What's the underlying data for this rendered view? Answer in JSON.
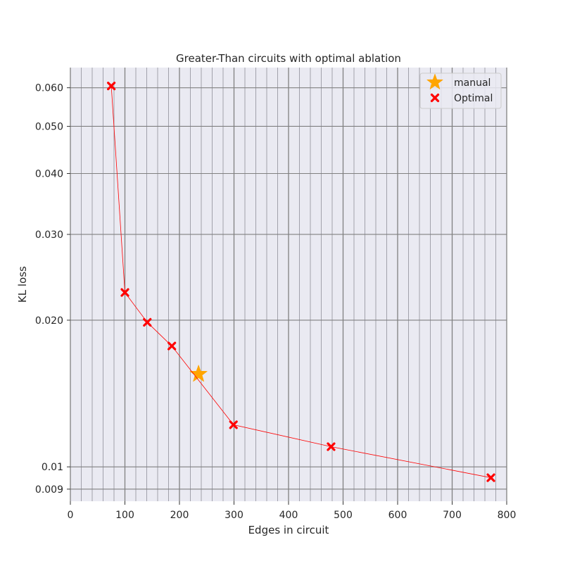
{
  "chart_data": {
    "type": "scatter",
    "title": "Greater-Than circuits with optimal ablation",
    "xlabel": "Edges in circuit",
    "ylabel": "KL loss",
    "xlim": [
      0,
      800
    ],
    "ylim": [
      0.0085,
      0.066
    ],
    "yscale": "log",
    "x_ticks": [
      0,
      100,
      200,
      300,
      400,
      500,
      600,
      700,
      800
    ],
    "x_tick_labels": [
      "0",
      "100",
      "200",
      "300",
      "400",
      "500",
      "600",
      "700",
      "800"
    ],
    "y_ticks": [
      0.009,
      0.01,
      0.02,
      0.03,
      0.04,
      0.05,
      0.06
    ],
    "y_tick_labels": [
      "0.009",
      "0.01",
      "0.020",
      "0.030",
      "0.040",
      "0.050",
      "0.060"
    ],
    "grid": true,
    "legend": "top-right",
    "series": [
      {
        "name": "manual",
        "marker": "star",
        "color": "#FFA500",
        "x": [
          235
        ],
        "y": [
          0.0155
        ]
      },
      {
        "name": "Optimal",
        "marker": "x",
        "color": "#FF0000",
        "line": true,
        "x": [
          75,
          100,
          141,
          186,
          299,
          478,
          771
        ],
        "y": [
          0.0605,
          0.0228,
          0.0198,
          0.0177,
          0.0122,
          0.011,
          0.0095
        ]
      }
    ]
  }
}
